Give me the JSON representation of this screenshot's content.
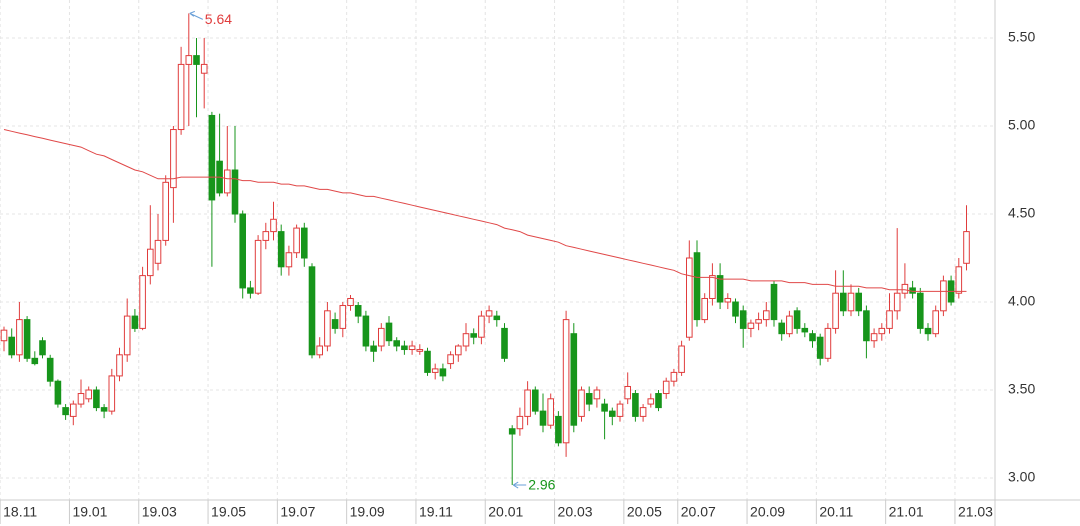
{
  "chart_data": {
    "type": "candlestick",
    "categories": [
      "18.11",
      null,
      null,
      null,
      null,
      null,
      null,
      null,
      null,
      "19.01",
      null,
      null,
      null,
      null,
      null,
      null,
      null,
      null,
      "19.03",
      null,
      null,
      null,
      null,
      null,
      null,
      null,
      null,
      "19.05",
      null,
      null,
      null,
      null,
      null,
      null,
      null,
      null,
      "19.07",
      null,
      null,
      null,
      null,
      null,
      null,
      null,
      null,
      "19.09",
      null,
      null,
      null,
      null,
      null,
      null,
      null,
      null,
      "19.11",
      null,
      null,
      null,
      null,
      null,
      null,
      null,
      null,
      "20.01",
      null,
      null,
      null,
      null,
      null,
      null,
      null,
      null,
      "20.03",
      null,
      null,
      null,
      null,
      null,
      null,
      null,
      null,
      "20.05",
      null,
      null,
      null,
      null,
      null,
      null,
      "20.07",
      null,
      null,
      null,
      null,
      null,
      null,
      null,
      null,
      "20.09",
      null,
      null,
      null,
      null,
      null,
      null,
      null,
      null,
      "20.11",
      null,
      null,
      null,
      null,
      null,
      null,
      null,
      null,
      "21.01",
      null,
      null,
      null,
      null,
      null,
      null,
      null,
      null,
      "21.03",
      null
    ],
    "open": [
      3.78,
      3.8,
      3.7,
      3.9,
      3.68,
      3.78,
      3.68,
      3.55,
      3.4,
      3.35,
      3.42,
      3.45,
      3.5,
      3.4,
      3.38,
      3.58,
      3.7,
      3.92,
      3.85,
      4.15,
      4.22,
      4.35,
      4.65,
      4.98,
      5.35,
      5.4,
      5.3,
      5.06,
      4.8,
      4.62,
      4.75,
      4.5,
      4.08,
      4.05,
      4.35,
      4.4,
      4.4,
      4.2,
      4.28,
      4.42,
      4.2,
      3.7,
      3.75,
      3.9,
      3.85,
      3.98,
      3.98,
      3.92,
      3.75,
      3.75,
      3.88,
      3.78,
      3.75,
      3.73,
      3.72,
      3.72,
      3.6,
      3.62,
      3.65,
      3.7,
      3.75,
      3.82,
      3.8,
      3.92,
      3.92,
      3.85,
      3.28,
      3.28,
      3.35,
      3.5,
      3.38,
      3.3,
      3.35,
      3.2,
      3.82,
      3.35,
      3.48,
      3.45,
      3.42,
      3.38,
      3.35,
      3.45,
      3.48,
      3.35,
      3.42,
      3.48,
      3.48,
      3.55,
      3.6,
      3.8,
      4.28,
      3.9,
      4.02,
      4.15,
      4.0,
      4.0,
      3.95,
      3.85,
      3.88,
      3.9,
      4.1,
      3.88,
      3.82,
      3.95,
      3.85,
      3.82,
      3.8,
      3.68,
      3.85,
      4.05,
      3.95,
      4.05,
      3.95,
      3.78,
      3.82,
      3.85,
      3.95,
      4.05,
      4.08,
      4.05,
      3.85,
      3.82,
      3.95,
      4.12,
      4.05,
      4.22
    ],
    "high": [
      3.86,
      3.85,
      4.0,
      3.92,
      3.72,
      3.8,
      3.7,
      3.56,
      3.42,
      3.44,
      3.56,
      3.52,
      3.52,
      3.42,
      3.62,
      3.74,
      4.02,
      3.96,
      4.2,
      4.55,
      4.5,
      4.72,
      5.0,
      5.45,
      5.64,
      5.5,
      5.5,
      5.08,
      5.07,
      5.0,
      5.0,
      4.52,
      4.12,
      4.38,
      4.45,
      4.57,
      4.44,
      4.32,
      4.44,
      4.45,
      4.22,
      3.8,
      4.0,
      3.94,
      4.0,
      4.04,
      4.0,
      3.95,
      3.78,
      3.88,
      3.92,
      3.8,
      3.78,
      3.78,
      3.76,
      3.74,
      3.65,
      3.65,
      3.72,
      3.76,
      3.88,
      3.85,
      3.95,
      3.98,
      3.95,
      3.88,
      3.3,
      3.4,
      3.55,
      3.52,
      3.48,
      3.48,
      3.38,
      3.95,
      3.88,
      3.52,
      3.52,
      3.52,
      3.45,
      3.4,
      3.44,
      3.6,
      3.5,
      3.42,
      3.48,
      3.5,
      3.57,
      3.62,
      3.78,
      4.35,
      4.35,
      4.05,
      4.22,
      4.22,
      4.05,
      4.02,
      3.98,
      3.9,
      3.94,
      4.0,
      4.12,
      3.9,
      3.95,
      3.97,
      3.88,
      3.84,
      3.82,
      3.88,
      4.18,
      4.18,
      4.1,
      4.08,
      3.98,
      3.85,
      3.88,
      4.05,
      4.42,
      4.22,
      4.12,
      4.08,
      3.88,
      3.98,
      4.15,
      4.15,
      4.25,
      4.55
    ],
    "low": [
      3.72,
      3.68,
      3.66,
      3.66,
      3.64,
      3.68,
      3.52,
      3.4,
      3.33,
      3.3,
      3.4,
      3.43,
      3.38,
      3.34,
      3.36,
      3.55,
      3.66,
      3.83,
      3.84,
      4.1,
      4.18,
      4.32,
      4.45,
      4.95,
      5.0,
      5.05,
      5.1,
      4.2,
      4.6,
      4.6,
      4.45,
      4.02,
      4.02,
      4.04,
      4.3,
      4.35,
      4.15,
      4.15,
      4.25,
      4.2,
      3.68,
      3.68,
      3.72,
      3.82,
      3.8,
      3.95,
      3.88,
      3.72,
      3.66,
      3.72,
      3.75,
      3.72,
      3.7,
      3.7,
      3.7,
      3.58,
      3.56,
      3.55,
      3.62,
      3.66,
      3.72,
      3.76,
      3.76,
      3.88,
      3.86,
      3.66,
      2.96,
      3.24,
      3.3,
      3.36,
      3.26,
      3.28,
      3.18,
      3.12,
      3.26,
      3.32,
      3.38,
      3.4,
      3.22,
      3.3,
      3.32,
      3.42,
      3.32,
      3.32,
      3.4,
      3.38,
      3.45,
      3.52,
      3.58,
      3.78,
      3.86,
      3.88,
      3.98,
      3.96,
      3.96,
      3.88,
      3.74,
      3.8,
      3.84,
      3.86,
      3.86,
      3.78,
      3.8,
      3.82,
      3.8,
      3.74,
      3.64,
      3.66,
      3.82,
      3.92,
      3.92,
      3.92,
      3.68,
      3.74,
      3.78,
      3.82,
      3.9,
      4.02,
      4.02,
      3.82,
      3.78,
      3.8,
      3.92,
      3.98,
      4.02,
      4.18
    ],
    "close": [
      3.84,
      3.7,
      3.9,
      3.68,
      3.65,
      3.7,
      3.55,
      3.42,
      3.36,
      3.42,
      3.48,
      3.5,
      3.4,
      3.38,
      3.58,
      3.7,
      3.92,
      3.85,
      4.15,
      4.3,
      4.35,
      4.68,
      4.98,
      5.35,
      5.4,
      5.35,
      5.35,
      4.58,
      4.62,
      4.75,
      4.5,
      4.08,
      4.05,
      4.35,
      4.4,
      4.47,
      4.2,
      4.28,
      4.42,
      4.25,
      3.7,
      3.75,
      3.95,
      3.85,
      3.98,
      4.02,
      3.92,
      3.75,
      3.72,
      3.85,
      3.78,
      3.75,
      3.73,
      3.75,
      3.73,
      3.6,
      3.62,
      3.58,
      3.7,
      3.75,
      3.82,
      3.8,
      3.92,
      3.95,
      3.9,
      3.68,
      3.25,
      3.35,
      3.5,
      3.38,
      3.3,
      3.45,
      3.2,
      3.9,
      3.3,
      3.5,
      3.42,
      3.5,
      3.38,
      3.35,
      3.42,
      3.52,
      3.35,
      3.4,
      3.45,
      3.4,
      3.55,
      3.6,
      3.75,
      4.25,
      3.9,
      4.02,
      4.15,
      4.0,
      4.02,
      3.92,
      3.85,
      3.88,
      3.9,
      3.95,
      3.9,
      3.82,
      3.92,
      3.85,
      3.83,
      3.78,
      3.68,
      3.85,
      4.05,
      3.95,
      4.05,
      3.95,
      3.78,
      3.82,
      3.85,
      3.95,
      4.05,
      4.1,
      4.05,
      3.85,
      3.82,
      3.95,
      4.12,
      4.0,
      4.2,
      4.4
    ],
    "ma": {
      "color": "#e04848",
      "values": [
        4.98,
        4.97,
        4.96,
        4.95,
        4.94,
        4.93,
        4.92,
        4.91,
        4.9,
        4.89,
        4.88,
        4.86,
        4.84,
        4.83,
        4.81,
        4.79,
        4.77,
        4.75,
        4.74,
        4.72,
        4.7,
        4.7,
        4.7,
        4.71,
        4.71,
        4.71,
        4.71,
        4.71,
        4.71,
        4.7,
        4.7,
        4.69,
        4.69,
        4.68,
        4.68,
        4.68,
        4.67,
        4.67,
        4.66,
        4.66,
        4.65,
        4.64,
        4.64,
        4.63,
        4.62,
        4.62,
        4.61,
        4.6,
        4.6,
        4.59,
        4.58,
        4.57,
        4.56,
        4.55,
        4.54,
        4.53,
        4.52,
        4.51,
        4.5,
        4.49,
        4.48,
        4.47,
        4.46,
        4.45,
        4.44,
        4.42,
        4.41,
        4.4,
        4.38,
        4.37,
        4.36,
        4.35,
        4.34,
        4.32,
        4.31,
        4.3,
        4.29,
        4.28,
        4.27,
        4.26,
        4.25,
        4.24,
        4.23,
        4.22,
        4.21,
        4.2,
        4.19,
        4.18,
        4.16,
        4.15,
        4.14,
        4.14,
        4.14,
        4.13,
        4.13,
        4.13,
        4.13,
        4.12,
        4.12,
        4.12,
        4.12,
        4.12,
        4.11,
        4.11,
        4.11,
        4.1,
        4.1,
        4.1,
        4.09,
        4.09,
        4.09,
        4.09,
        4.08,
        4.08,
        4.08,
        4.07,
        4.07,
        4.07,
        4.06,
        4.06,
        4.06,
        4.06,
        4.06,
        4.06,
        4.06,
        4.06
      ]
    },
    "up_color": "#e03c3c",
    "down_color": "#17951b",
    "ylim": [
      2.875,
      5.716
    ],
    "yticks": [
      {
        "value": 3,
        "label": "3.00"
      },
      {
        "value": 3.5,
        "label": "3.50"
      },
      {
        "value": 4,
        "label": "4.00"
      },
      {
        "value": 4.5,
        "label": "4.50"
      },
      {
        "value": 5,
        "label": "5.00"
      },
      {
        "value": 5.5,
        "label": "5.50"
      }
    ],
    "grid": true
  }
}
